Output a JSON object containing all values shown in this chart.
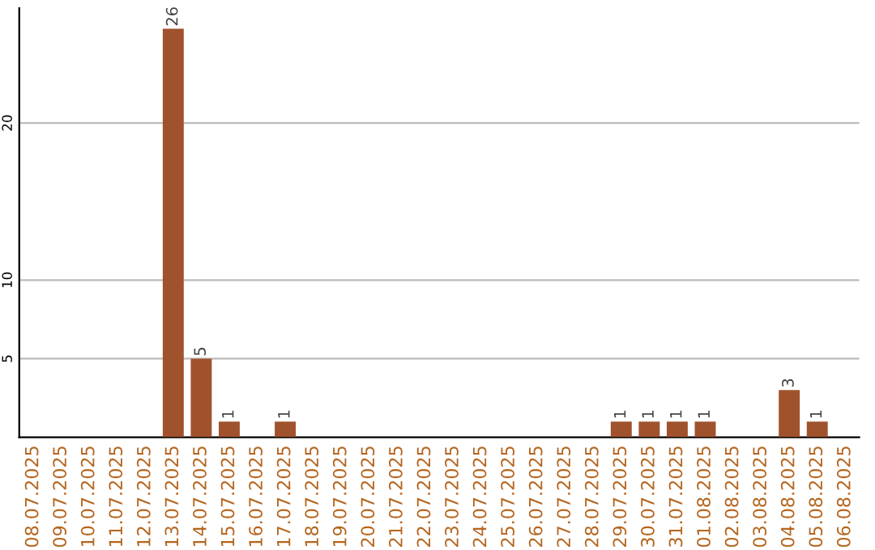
{
  "chart_data": {
    "type": "bar",
    "categories": [
      "08.07.2025",
      "09.07.2025",
      "10.07.2025",
      "11.07.2025",
      "12.07.2025",
      "13.07.2025",
      "14.07.2025",
      "15.07.2025",
      "16.07.2025",
      "17.07.2025",
      "18.07.2025",
      "19.07.2025",
      "20.07.2025",
      "21.07.2025",
      "22.07.2025",
      "23.07.2025",
      "24.07.2025",
      "25.07.2025",
      "26.07.2025",
      "27.07.2025",
      "28.07.2025",
      "29.07.2025",
      "30.07.2025",
      "31.07.2025",
      "01.08.2025",
      "02.08.2025",
      "03.08.2025",
      "04.08.2025",
      "05.08.2025",
      "06.08.2025"
    ],
    "values": [
      0,
      0,
      0,
      0,
      0,
      26,
      5,
      1,
      0,
      1,
      0,
      0,
      0,
      0,
      0,
      0,
      0,
      0,
      0,
      0,
      0,
      1,
      1,
      1,
      1,
      0,
      0,
      3,
      1,
      0
    ],
    "value_labels": [
      null,
      null,
      null,
      null,
      null,
      "26",
      "5",
      "1",
      null,
      "1",
      null,
      null,
      null,
      null,
      null,
      null,
      null,
      null,
      null,
      null,
      null,
      "1",
      "1",
      "1",
      "1",
      null,
      null,
      "3",
      "1",
      null
    ],
    "color": "#a0522d",
    "ylim": [
      0,
      27.3
    ],
    "yticks": [
      5,
      10,
      20
    ],
    "grid": "y"
  }
}
